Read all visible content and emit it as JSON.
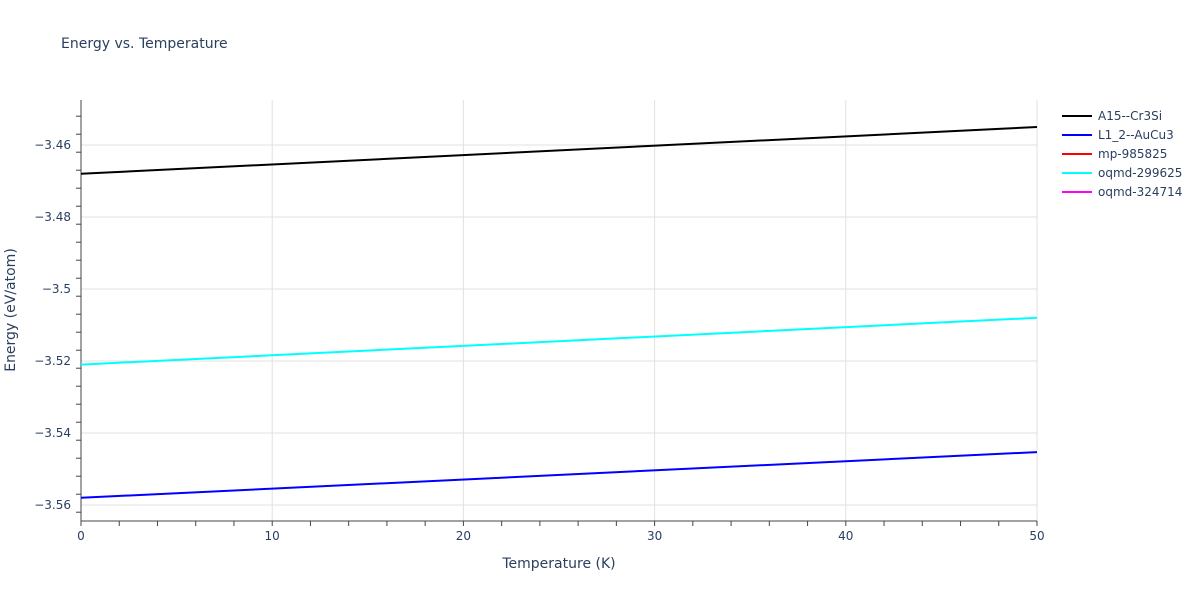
{
  "chart_data": {
    "type": "line",
    "title": "Energy vs. Temperature",
    "xlabel": "Temperature (K)",
    "ylabel": "Energy (eV/atom)",
    "xlim": [
      0,
      50
    ],
    "ylim": [
      -3.5645,
      -3.4475
    ],
    "x_ticks": [
      "0",
      "10",
      "20",
      "30",
      "40",
      "50"
    ],
    "y_ticks": [
      "−3.46",
      "−3.48",
      "−3.5",
      "−3.52",
      "−3.54",
      "−3.56"
    ],
    "grid": true,
    "legend_position": "right",
    "x": [
      0,
      50
    ],
    "series": [
      {
        "name": "A15--Cr3Si",
        "color": "#000000",
        "values": [
          -3.468,
          -3.455
        ]
      },
      {
        "name": "L1_2--AuCu3",
        "color": "#0000ff",
        "values": [
          -3.558,
          -3.5453
        ]
      },
      {
        "name": "mp-985825",
        "color": "#ff0000",
        "values": []
      },
      {
        "name": "oqmd-299625",
        "color": "#00ffff",
        "values": [
          -3.521,
          -3.508
        ]
      },
      {
        "name": "oqmd-324714",
        "color": "#ff00ff",
        "values": []
      }
    ]
  }
}
